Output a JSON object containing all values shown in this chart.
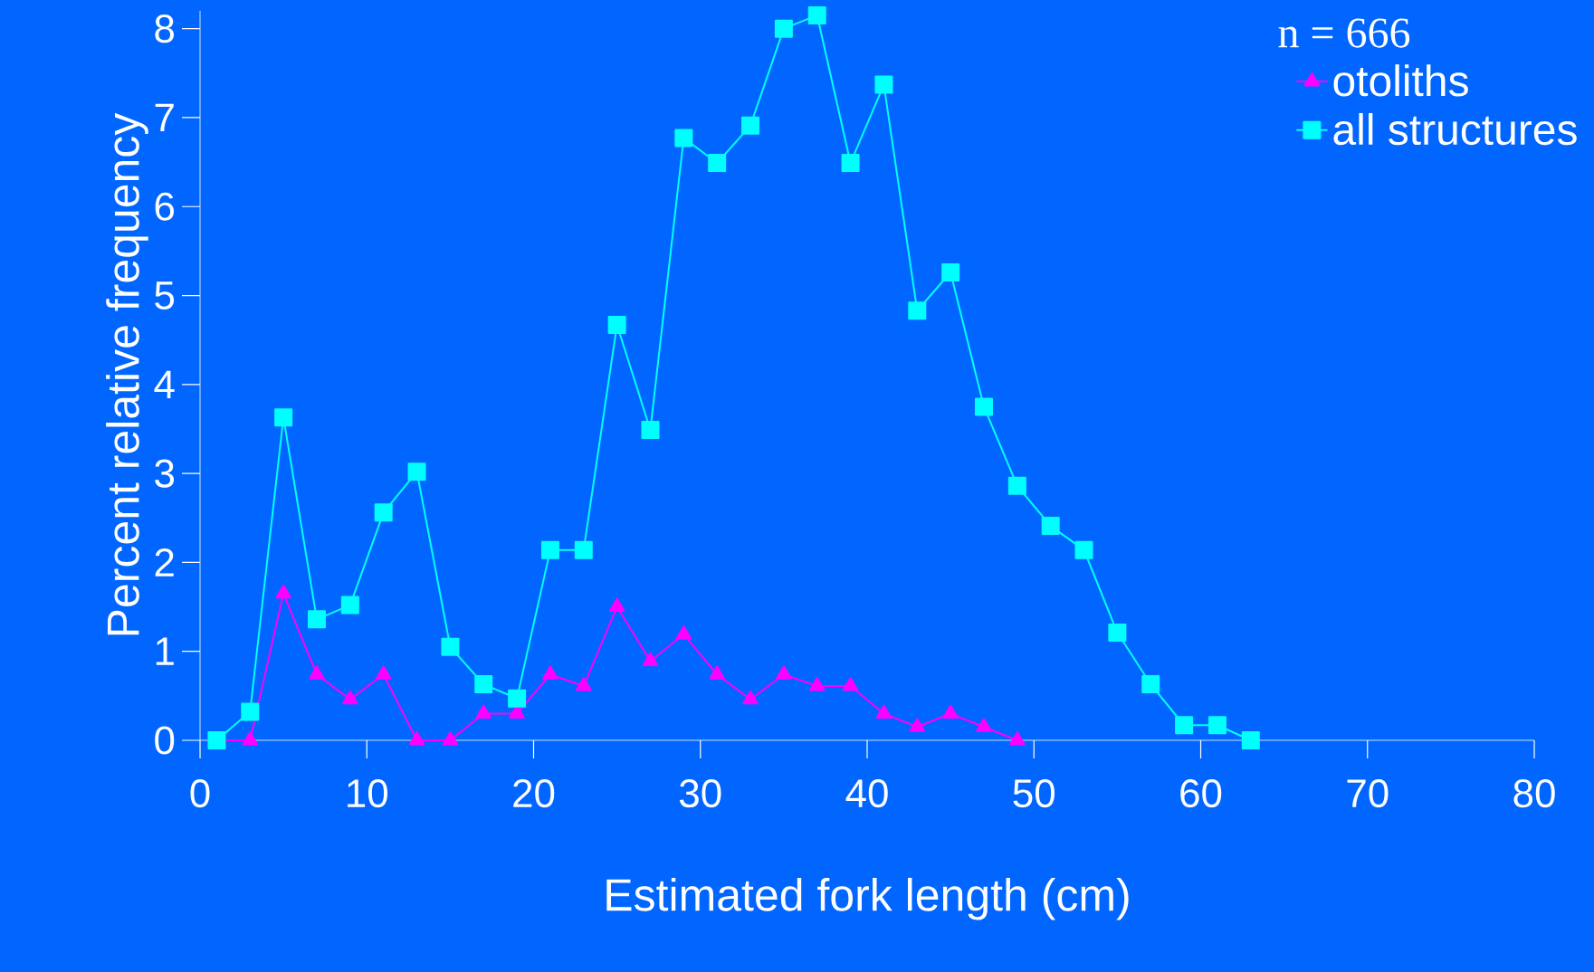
{
  "chart_data": {
    "type": "line",
    "xlabel": "Estimated fork length (cm)",
    "ylabel": "Percent relative frequency",
    "legend_title": "n = 666",
    "xlim": [
      0,
      80
    ],
    "xticks": [
      0,
      10,
      20,
      30,
      40,
      50,
      60,
      70,
      80
    ],
    "ylim": [
      0,
      8.2
    ],
    "yticks": [
      0,
      1,
      2,
      3,
      4,
      5,
      6,
      7,
      8
    ],
    "legend": "top right",
    "grid": false,
    "series": [
      {
        "name": "otoliths",
        "color": "#ff00ff",
        "marker": "triangle",
        "x": [
          1,
          3,
          5,
          7,
          9,
          11,
          13,
          15,
          17,
          19,
          21,
          23,
          25,
          27,
          29,
          31,
          33,
          35,
          37,
          39,
          41,
          43,
          45,
          47,
          49
        ],
        "values": [
          0,
          0,
          1.65,
          0.74,
          0.46,
          0.74,
          0,
          0,
          0.3,
          0.3,
          0.74,
          0.61,
          1.5,
          0.89,
          1.19,
          0.74,
          0.46,
          0.74,
          0.61,
          0.61,
          0.3,
          0.15,
          0.3,
          0.15,
          0
        ]
      },
      {
        "name": "all structures",
        "color": "#00ffff",
        "marker": "square",
        "x": [
          1,
          3,
          5,
          7,
          9,
          11,
          13,
          15,
          17,
          19,
          21,
          23,
          25,
          27,
          29,
          31,
          33,
          35,
          37,
          39,
          41,
          43,
          45,
          47,
          49,
          51,
          53,
          55,
          57,
          59,
          61,
          63
        ],
        "values": [
          0,
          0.32,
          3.63,
          1.36,
          1.52,
          2.56,
          3.02,
          1.05,
          0.63,
          0.47,
          2.14,
          2.14,
          4.67,
          3.49,
          6.77,
          6.49,
          6.91,
          8.0,
          8.15,
          6.49,
          7.37,
          4.83,
          5.26,
          3.75,
          2.86,
          2.41,
          2.14,
          1.21,
          0.63,
          0.17,
          0.17,
          0
        ]
      }
    ]
  }
}
